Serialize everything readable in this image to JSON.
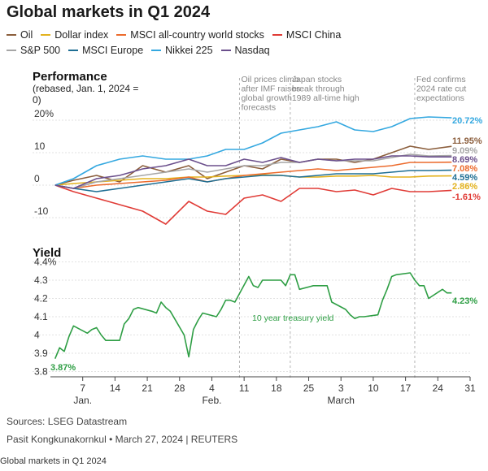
{
  "header": {
    "title": "Global markets in Q1 2024"
  },
  "legend": [
    {
      "name": "Oil",
      "color": "#8b5e3c"
    },
    {
      "name": "Dollar index",
      "color": "#e3b21d"
    },
    {
      "name": "MSCI all-country world stocks",
      "color": "#ec6b2d"
    },
    {
      "name": "MSCI China",
      "color": "#e03b36"
    },
    {
      "name": "S&P 500",
      "color": "#a6a6a6"
    },
    {
      "name": "MSCI Europe",
      "color": "#1f6f94"
    },
    {
      "name": "Nikkei 225",
      "color": "#34a8e0"
    },
    {
      "name": "Nasdaq",
      "color": "#6b4f8c"
    }
  ],
  "performance": {
    "title": "Performance",
    "subtitle": "(rebased, Jan. 1, 2024 = 0)",
    "y_ticks": [
      "20%",
      "10",
      "0",
      "-10"
    ],
    "y_tick_values": [
      20,
      10,
      0,
      -10
    ],
    "ylim": [
      -14,
      24
    ],
    "annotations": [
      {
        "text": [
          "Oil prices climb",
          "after IMF raises",
          "global growth",
          "forecasts"
        ],
        "day": 41
      },
      {
        "text": [
          "Japan stocks",
          "break through",
          "1989 all-time high"
        ],
        "day": 52
      },
      {
        "text": [
          "Fed confirms",
          "2024 rate cut",
          "expectations"
        ],
        "day": 79
      }
    ],
    "end_labels": [
      {
        "text": "20.72%",
        "color": "#34a8e0",
        "value": 20.72
      },
      {
        "text": "11.95%",
        "color": "#8b5e3c",
        "value": 11.95
      },
      {
        "text": "9.09%",
        "color": "#a6a6a6",
        "value": 9.09
      },
      {
        "text": "8.69%",
        "color": "#6b4f8c",
        "value": 8.69
      },
      {
        "text": "7.08%",
        "color": "#ec6b2d",
        "value": 7.08
      },
      {
        "text": "4.59%",
        "color": "#1f6f94",
        "value": 4.59
      },
      {
        "text": "2.86%",
        "color": "#e3b21d",
        "value": 2.86
      },
      {
        "text": "-1.61%",
        "color": "#e03b36",
        "value": -1.61
      }
    ]
  },
  "yield": {
    "title": "Yield",
    "y_ticks": [
      "4.4%",
      "4.3",
      "4.2",
      "4.1",
      "4",
      "3.9",
      "3.8"
    ],
    "y_tick_values": [
      4.4,
      4.3,
      4.2,
      4.1,
      4.0,
      3.9,
      3.8
    ],
    "ylim": [
      3.78,
      4.42
    ],
    "series_label": "10 year treasury yield",
    "start_label": "3.87%",
    "end_label": "4.23%",
    "color": "#2e9e44"
  },
  "x_axis": {
    "day_ticks": [
      "7",
      "14",
      "21",
      "28",
      "4",
      "11",
      "18",
      "25",
      "3",
      "10",
      "17",
      "24",
      "31"
    ],
    "day_tick_positions": [
      7,
      14,
      21,
      28,
      35,
      42,
      49,
      56,
      63,
      70,
      77,
      84,
      91
    ],
    "month_labels": [
      "Jan.",
      "Feb.",
      "March"
    ],
    "month_positions": [
      7,
      35,
      63
    ]
  },
  "chart_data": {
    "type": "line",
    "title": "Global markets in Q1 2024",
    "x_unit": "day of year 2024 (1 = Jan. 1)",
    "performance": {
      "ylabel": "Performance (rebased, Jan. 1, 2024 = 0)",
      "ylim": [
        -14,
        24
      ],
      "x": [
        1,
        5,
        10,
        15,
        20,
        25,
        30,
        34,
        38,
        42,
        46,
        50,
        54,
        58,
        62,
        66,
        70,
        74,
        78,
        82,
        87
      ],
      "series": [
        {
          "name": "Oil",
          "color": "#8b5e3c",
          "values": [
            0,
            1.5,
            3,
            1,
            6,
            4,
            6,
            2,
            4,
            6,
            5,
            8,
            7,
            8,
            8,
            7,
            8,
            10,
            12,
            11,
            11.95
          ]
        },
        {
          "name": "Dollar index",
          "color": "#e3b21d",
          "values": [
            0,
            0.5,
            1,
            1.5,
            2,
            2,
            2.5,
            2.5,
            2.8,
            3,
            3.2,
            3,
            2.5,
            2.5,
            2.8,
            2.8,
            3,
            2.5,
            2.5,
            2.8,
            2.86
          ]
        },
        {
          "name": "MSCI all-country world stocks",
          "color": "#ec6b2d",
          "values": [
            0,
            -1,
            0,
            0.5,
            1,
            1.5,
            2.5,
            1,
            2,
            3,
            3.5,
            4,
            4.5,
            5,
            4.5,
            5,
            5.5,
            6,
            7,
            7,
            7.08
          ]
        },
        {
          "name": "MSCI China",
          "color": "#e03b36",
          "values": [
            0,
            -2,
            -4,
            -6,
            -8,
            -12,
            -5,
            -8,
            -9,
            -4,
            -3,
            -5,
            -1,
            -1,
            -2,
            -1.5,
            -3,
            -1,
            -2,
            -2,
            -1.61
          ]
        },
        {
          "name": "S&P 500",
          "color": "#a6a6a6",
          "values": [
            0,
            -1,
            1,
            2,
            3,
            4,
            5,
            4,
            5,
            6,
            6,
            7,
            7,
            8,
            7.5,
            7.5,
            7.5,
            8.5,
            9.5,
            9,
            9.09
          ]
        },
        {
          "name": "MSCI Europe",
          "color": "#1f6f94",
          "values": [
            0,
            -1,
            -2,
            -1,
            0,
            1,
            2,
            1,
            2,
            2.5,
            3,
            3,
            2.5,
            3,
            3.5,
            3.5,
            3.5,
            4,
            4.5,
            4.5,
            4.59
          ]
        },
        {
          "name": "Nikkei 225",
          "color": "#34a8e0",
          "values": [
            0,
            2,
            6,
            8,
            9,
            8,
            8,
            9,
            11,
            11,
            13,
            16,
            17,
            18,
            19.5,
            17,
            16.5,
            18,
            20.5,
            21,
            20.72
          ]
        },
        {
          "name": "Nasdaq",
          "color": "#6b4f8c",
          "values": [
            0,
            -1,
            2,
            3,
            5,
            6,
            8,
            6,
            6,
            8,
            7,
            8.5,
            7,
            8,
            7.5,
            8,
            8,
            9,
            9,
            8.7,
            8.69
          ]
        }
      ]
    },
    "yield": {
      "ylabel": "Yield",
      "ylim": [
        3.78,
        4.42
      ],
      "series": [
        {
          "name": "10 year treasury yield",
          "color": "#2e9e44",
          "x": [
            1,
            2,
            3,
            4,
            5,
            8,
            9,
            10,
            11,
            12,
            15,
            16,
            17,
            18,
            19,
            22,
            23,
            24,
            25,
            26,
            29,
            30,
            31,
            32,
            33,
            36,
            37,
            38,
            39,
            40,
            43,
            44,
            45,
            46,
            47,
            50,
            51,
            52,
            53,
            54,
            57,
            58,
            59,
            60,
            61,
            64,
            65,
            66,
            67,
            68,
            71,
            72,
            73,
            74,
            75,
            78,
            79,
            80,
            81,
            82,
            85,
            86,
            87
          ],
          "values": [
            3.87,
            3.93,
            3.91,
            3.99,
            4.05,
            4.01,
            4.03,
            4.04,
            4.0,
            3.97,
            3.97,
            4.06,
            4.09,
            4.14,
            4.15,
            4.13,
            4.12,
            4.18,
            4.15,
            4.13,
            4.0,
            3.88,
            4.03,
            4.08,
            4.12,
            4.1,
            4.14,
            4.19,
            4.19,
            4.18,
            4.32,
            4.27,
            4.26,
            4.3,
            4.3,
            4.3,
            4.27,
            4.33,
            4.33,
            4.25,
            4.27,
            4.27,
            4.27,
            4.27,
            4.18,
            4.14,
            4.11,
            4.09,
            4.1,
            4.1,
            4.11,
            4.19,
            4.25,
            4.32,
            4.33,
            4.34,
            4.3,
            4.27,
            4.27,
            4.2,
            4.25,
            4.23,
            4.23
          ]
        }
      ]
    }
  },
  "footer": {
    "sources": "Sources: LSEG Datastream",
    "credit": "Pasit Kongkunakornkul • March 27, 2024 | REUTERS",
    "caption": "Global markets in Q1 2024"
  }
}
